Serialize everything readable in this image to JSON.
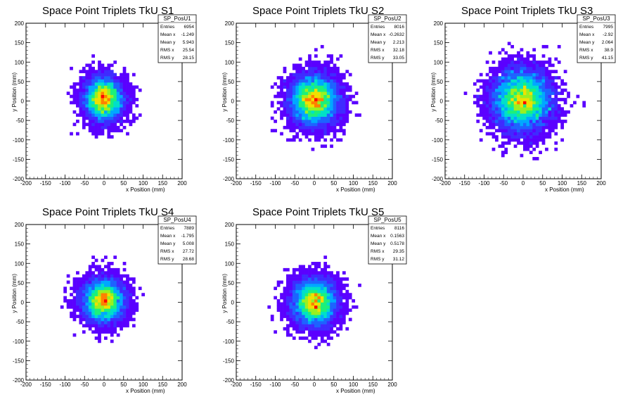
{
  "colors": {
    "background": "#ffffff",
    "axis": "#000000",
    "palette": [
      "#5a00ff",
      "#3f2bff",
      "#1d63ff",
      "#00a8ff",
      "#00e0c8",
      "#1cf07a",
      "#9af020",
      "#f0e000",
      "#ff8000",
      "#ff0000"
    ]
  },
  "chart_data": [
    {
      "type": "heatmap",
      "title": "Space Point Triplets TkU S1",
      "xlabel": "x Position (mm)",
      "ylabel": "y Position (mm)",
      "xlim": [
        -200,
        200
      ],
      "ylim": [
        -200,
        200
      ],
      "xticks": [
        "-200",
        "-150",
        "-100",
        "-50",
        "0",
        "50",
        "100",
        "150",
        "200"
      ],
      "yticks": [
        "-200",
        "-150",
        "-100",
        "-50",
        "0",
        "50",
        "100",
        "150",
        "200"
      ],
      "stats": {
        "name": "SP_PosU1",
        "rows": [
          {
            "label": "Entries",
            "value": "6954"
          },
          {
            "label": "Mean x",
            "value": "-1.249"
          },
          {
            "label": "Mean y",
            "value": "5.943"
          },
          {
            "label": "RMS x",
            "value": "25.54"
          },
          {
            "label": "RMS y",
            "value": "28.15"
          }
        ]
      },
      "distribution": {
        "mean_x": -1.249,
        "mean_y": 5.943,
        "rms_x": 25.54,
        "rms_y": 28.15,
        "entries": 6954
      }
    },
    {
      "type": "heatmap",
      "title": "Space Point Triplets TkU S2",
      "xlabel": "x Position (mm)",
      "ylabel": "y Position (mm)",
      "xlim": [
        -200,
        200
      ],
      "ylim": [
        -200,
        200
      ],
      "xticks": [
        "-200",
        "-150",
        "-100",
        "-50",
        "0",
        "50",
        "100",
        "150",
        "200"
      ],
      "yticks": [
        "-200",
        "-150",
        "-100",
        "-50",
        "0",
        "50",
        "100",
        "150",
        "200"
      ],
      "stats": {
        "name": "SP_PosU2",
        "rows": [
          {
            "label": "Entries",
            "value": "8016"
          },
          {
            "label": "Mean x",
            "value": "-0.2632"
          },
          {
            "label": "Mean y",
            "value": "2.213"
          },
          {
            "label": "RMS x",
            "value": "32.18"
          },
          {
            "label": "RMS y",
            "value": "33.05"
          }
        ]
      },
      "distribution": {
        "mean_x": -0.2632,
        "mean_y": 2.213,
        "rms_x": 32.18,
        "rms_y": 33.05,
        "entries": 8016
      }
    },
    {
      "type": "heatmap",
      "title": "Space Point Triplets TkU S3",
      "xlabel": "x Position (mm)",
      "ylabel": "y Position (mm)",
      "xlim": [
        -200,
        200
      ],
      "ylim": [
        -200,
        200
      ],
      "xticks": [
        "-200",
        "-150",
        "-100",
        "-50",
        "0",
        "50",
        "100",
        "150",
        "200"
      ],
      "yticks": [
        "-200",
        "-150",
        "-100",
        "-50",
        "0",
        "50",
        "100",
        "150",
        "200"
      ],
      "stats": {
        "name": "SP_PosU3",
        "rows": [
          {
            "label": "Entries",
            "value": "7995"
          },
          {
            "label": "Mean x",
            "value": "-2.92"
          },
          {
            "label": "Mean y",
            "value": "2.064"
          },
          {
            "label": "RMS x",
            "value": "38.9"
          },
          {
            "label": "RMS y",
            "value": "41.15"
          }
        ]
      },
      "distribution": {
        "mean_x": -2.92,
        "mean_y": 2.064,
        "rms_x": 38.9,
        "rms_y": 41.15,
        "entries": 7995
      }
    },
    {
      "type": "heatmap",
      "title": "Space Point Triplets TkU S4",
      "xlabel": "x Position (mm)",
      "ylabel": "y Position (mm)",
      "xlim": [
        -200,
        200
      ],
      "ylim": [
        -200,
        200
      ],
      "xticks": [
        "-200",
        "-150",
        "-100",
        "-50",
        "0",
        "50",
        "100",
        "150",
        "200"
      ],
      "yticks": [
        "-200",
        "-150",
        "-100",
        "-50",
        "0",
        "50",
        "100",
        "150",
        "200"
      ],
      "stats": {
        "name": "SP_PosU4",
        "rows": [
          {
            "label": "Entries",
            "value": "7889"
          },
          {
            "label": "Mean x",
            "value": "-1.795"
          },
          {
            "label": "Mean y",
            "value": "5.008"
          },
          {
            "label": "RMS x",
            "value": "27.72"
          },
          {
            "label": "RMS y",
            "value": "28.68"
          }
        ]
      },
      "distribution": {
        "mean_x": -1.795,
        "mean_y": 5.008,
        "rms_x": 27.72,
        "rms_y": 28.68,
        "entries": 7889
      }
    },
    {
      "type": "heatmap",
      "title": "Space Point Triplets TkU S5",
      "xlabel": "x Position (mm)",
      "ylabel": "y Position (mm)",
      "xlim": [
        -200,
        200
      ],
      "ylim": [
        -200,
        200
      ],
      "xticks": [
        "-200",
        "-150",
        "-100",
        "-50",
        "0",
        "50",
        "100",
        "150",
        "200"
      ],
      "yticks": [
        "-200",
        "-150",
        "-100",
        "-50",
        "0",
        "50",
        "100",
        "150",
        "200"
      ],
      "stats": {
        "name": "SP_PosU5",
        "rows": [
          {
            "label": "Entries",
            "value": "8116"
          },
          {
            "label": "Mean x",
            "value": "0.1563"
          },
          {
            "label": "Mean y",
            "value": "0.5178"
          },
          {
            "label": "RMS x",
            "value": "29.35"
          },
          {
            "label": "RMS y",
            "value": "31.12"
          }
        ]
      },
      "distribution": {
        "mean_x": 0.1563,
        "mean_y": 0.5178,
        "rms_x": 29.35,
        "rms_y": 31.12,
        "entries": 8116
      }
    }
  ]
}
